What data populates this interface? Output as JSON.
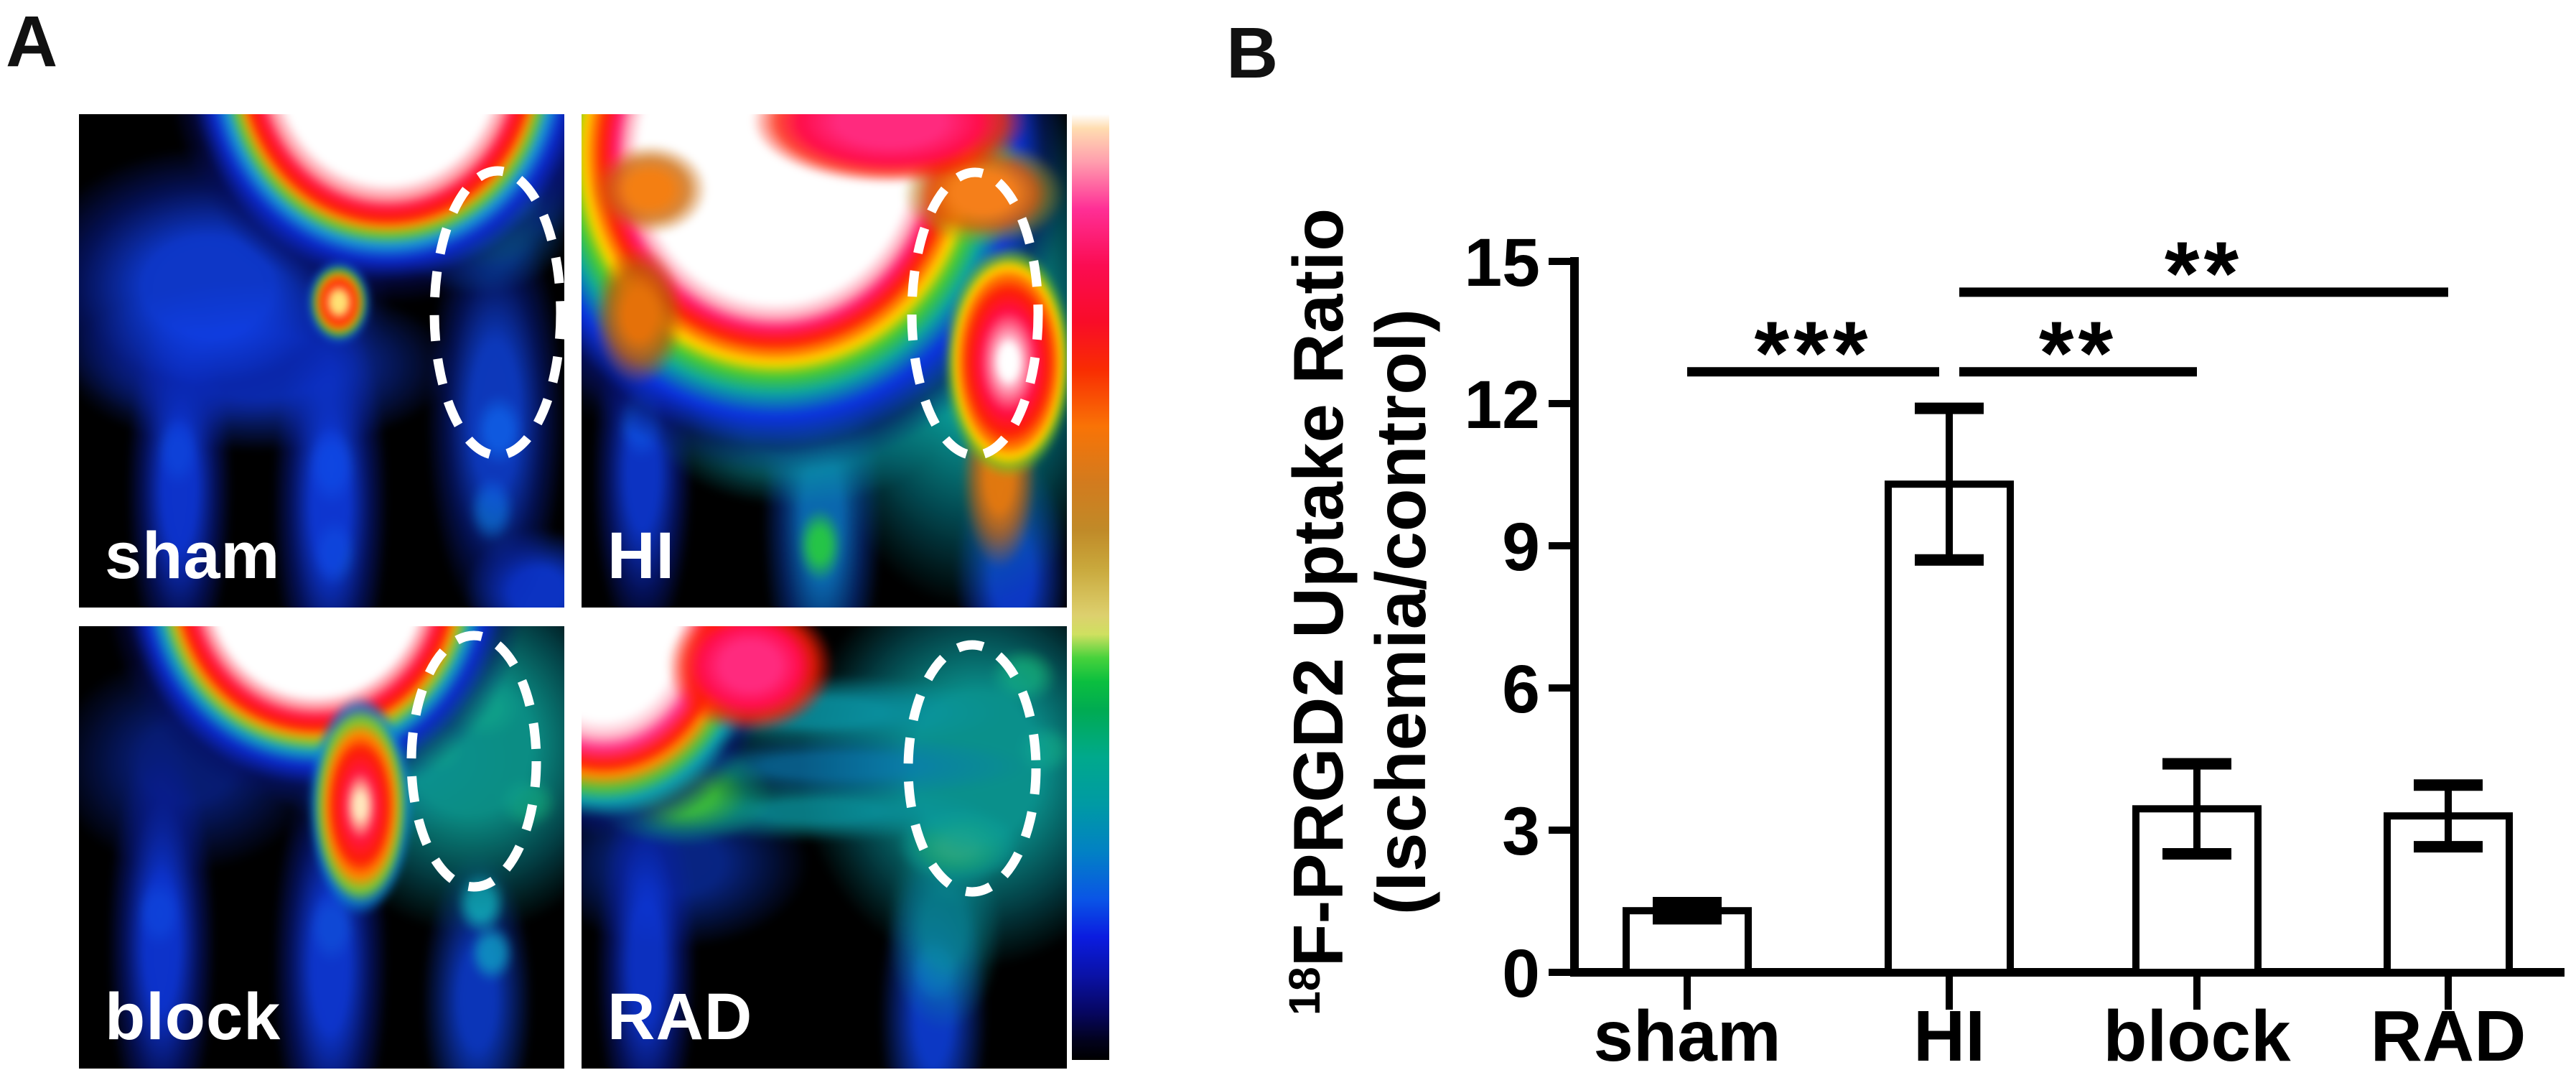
{
  "figure": {
    "panel_a_label": "A",
    "panel_b_label": "B",
    "background": "#ffffff"
  },
  "panel_a": {
    "images": [
      {
        "label": "sham"
      },
      {
        "label": "HI"
      },
      {
        "label": "block"
      },
      {
        "label": "RAD"
      }
    ],
    "roi_color": "#ffffff",
    "colorbar_stops": [
      "#ffffff 0%",
      "#ffddb0 1.5%",
      "#ff9fae 5%",
      "#ff2f96 10%",
      "#fb0c52 16%",
      "#f90c28 22%",
      "#f92c02 27%",
      "#f97306 33%",
      "#d27b1e 39%",
      "#c08a28 44%",
      "#c9a83c 48%",
      "#ddd06e 53%",
      "#cfe060 55%",
      "#47d23c 57.5%",
      "#0bbf3f 60%",
      "#00ab52 63%",
      "#00a98c 68%",
      "#009aa4 73%",
      "#0281c4 78%",
      "#0a55e6 83%",
      "#0b1ce0 87%",
      "#0a12a8 91%",
      "#060660 95%",
      "#02021c 98%",
      "#000000 100%"
    ]
  },
  "chart_data": {
    "type": "bar",
    "title": "",
    "categories": [
      "sham",
      "HI",
      "block",
      "RAD"
    ],
    "values": [
      1.3,
      10.3,
      3.45,
      3.3
    ],
    "errors": [
      0.17,
      1.6,
      0.95,
      0.65
    ],
    "ylabel_sup": "18",
    "ylabel_main": "F-PRGD2 Uptake Ratio",
    "ylabel_line2": "(Ischemia/control)",
    "yticks": [
      0,
      3,
      6,
      9,
      12,
      15
    ],
    "ylim": [
      0,
      15
    ],
    "grid": false,
    "bar_fill": "#ffffff",
    "bar_stroke": "#000000",
    "significance": [
      {
        "x1": "sham",
        "x2": "HI",
        "label": "***",
        "height": 12.67
      },
      {
        "x1": "HI",
        "x2": "block",
        "label": "**",
        "height": 12.67
      },
      {
        "x1": "HI",
        "x2": "RAD",
        "label": "**",
        "height": 14.35
      }
    ]
  }
}
